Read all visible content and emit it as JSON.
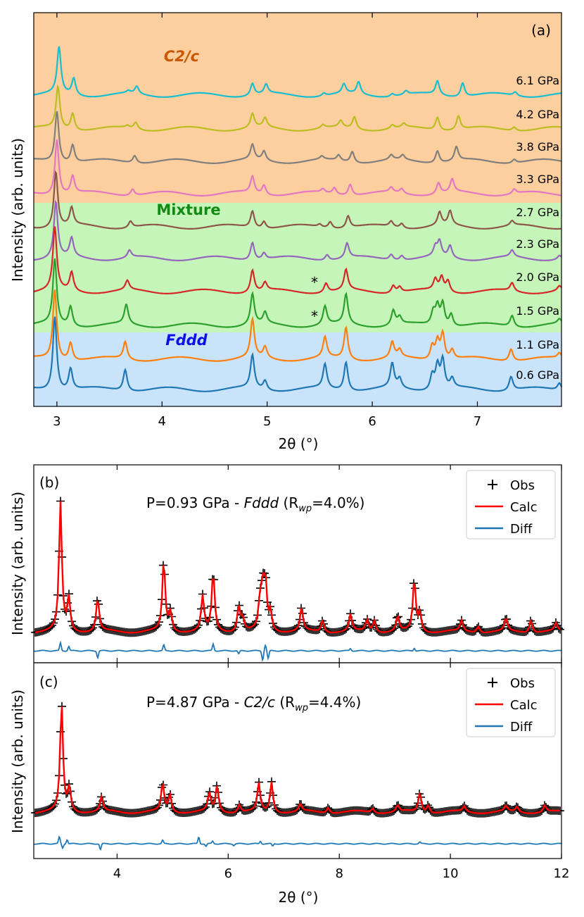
{
  "chart_data": [
    {
      "id": "a",
      "type": "line",
      "panel_label": "(a)",
      "xlabel": "2θ (°)",
      "ylabel": "Intensity (arb. units)",
      "xlim": [
        2.78,
        7.8
      ],
      "xticks": [
        3,
        4,
        5,
        6,
        7
      ],
      "regions": [
        {
          "name": "C2/c",
          "color": "#fdcf9f",
          "label_color": "#cc5500"
        },
        {
          "name": "Mixture",
          "color": "#c5f5b8",
          "label_color": "#138a13"
        },
        {
          "name": "Fddd",
          "color": "#c9e3fb",
          "label_color": "#0a10e6"
        }
      ],
      "series": [
        {
          "name": "6.1 GPa",
          "color": "#17becf",
          "region": "C2/c",
          "peaks": [
            [
              3.02,
              1.0
            ],
            [
              3.16,
              0.36
            ],
            [
              3.76,
              0.16
            ],
            [
              3.68,
              0.05
            ],
            [
              4.86,
              0.26
            ],
            [
              4.99,
              0.2
            ],
            [
              5.54,
              0.06
            ],
            [
              5.73,
              0.2
            ],
            [
              5.87,
              0.26
            ],
            [
              6.19,
              0.06
            ],
            [
              6.32,
              0.08
            ],
            [
              6.62,
              0.3
            ],
            [
              6.86,
              0.3
            ],
            [
              7.36,
              0.08
            ]
          ]
        },
        {
          "name": "4.2 GPa",
          "color": "#bcbd22",
          "region": "C2/c",
          "peaks": [
            [
              3.01,
              0.9
            ],
            [
              3.15,
              0.36
            ],
            [
              3.75,
              0.15
            ],
            [
              3.67,
              0.05
            ],
            [
              4.86,
              0.3
            ],
            [
              4.98,
              0.2
            ],
            [
              5.53,
              0.07
            ],
            [
              5.7,
              0.14
            ],
            [
              5.83,
              0.26
            ],
            [
              6.19,
              0.08
            ],
            [
              6.3,
              0.08
            ],
            [
              6.62,
              0.28
            ],
            [
              6.82,
              0.3
            ],
            [
              7.35,
              0.08
            ]
          ]
        },
        {
          "name": "3.8 GPa",
          "color": "#7f7f7f",
          "region": "C2/c",
          "peaks": [
            [
              3.0,
              1.1
            ],
            [
              3.15,
              0.38
            ],
            [
              3.74,
              0.16
            ],
            [
              4.86,
              0.32
            ],
            [
              4.97,
              0.2
            ],
            [
              5.52,
              0.07
            ],
            [
              5.68,
              0.12
            ],
            [
              5.81,
              0.24
            ],
            [
              6.18,
              0.1
            ],
            [
              6.29,
              0.1
            ],
            [
              6.62,
              0.26
            ],
            [
              6.8,
              0.3
            ],
            [
              7.35,
              0.08
            ]
          ]
        },
        {
          "name": "3.3 GPa",
          "color": "#e377c2",
          "region": "C2/c",
          "peaks": [
            [
              3.0,
              1.2
            ],
            [
              3.15,
              0.38
            ],
            [
              3.72,
              0.14
            ],
            [
              4.86,
              0.36
            ],
            [
              4.97,
              0.2
            ],
            [
              5.53,
              0.08
            ],
            [
              5.64,
              0.14
            ],
            [
              5.79,
              0.24
            ],
            [
              6.18,
              0.1
            ],
            [
              6.28,
              0.1
            ],
            [
              6.63,
              0.24
            ],
            [
              6.76,
              0.28
            ],
            [
              7.35,
              0.1
            ]
          ]
        },
        {
          "name": "2.7 GPa",
          "color": "#8c564b",
          "region": "Mixture",
          "peaks": [
            [
              2.99,
              1.2
            ],
            [
              3.14,
              0.38
            ],
            [
              3.7,
              0.14
            ],
            [
              4.86,
              0.36
            ],
            [
              4.97,
              0.15
            ],
            [
              5.5,
              0.06
            ],
            [
              5.6,
              0.14
            ],
            [
              5.77,
              0.26
            ],
            [
              6.18,
              0.12
            ],
            [
              6.28,
              0.1
            ],
            [
              6.64,
              0.28
            ],
            [
              6.74,
              0.3
            ],
            [
              7.33,
              0.1
            ]
          ]
        },
        {
          "name": "2.3 GPa",
          "color": "#9467bd",
          "region": "Mixture",
          "peaks": [
            [
              2.99,
              1.2
            ],
            [
              3.14,
              0.4
            ],
            [
              3.69,
              0.16
            ],
            [
              4.86,
              0.38
            ],
            [
              4.97,
              0.14
            ],
            [
              5.57,
              0.12
            ],
            [
              5.76,
              0.32
            ],
            [
              6.18,
              0.12
            ],
            [
              6.28,
              0.1
            ],
            [
              6.6,
              0.2
            ],
            [
              6.64,
              0.32
            ],
            [
              6.74,
              0.26
            ],
            [
              7.33,
              0.14
            ],
            [
              7.78,
              0.08
            ]
          ]
        },
        {
          "name": "2.0 GPa",
          "color": "#d62728",
          "region": "Mixture",
          "marker": "*",
          "peaks": [
            [
              2.98,
              1.35
            ],
            [
              3.14,
              0.4
            ],
            [
              3.67,
              0.2
            ],
            [
              4.86,
              0.48
            ],
            [
              4.98,
              0.18
            ],
            [
              5.56,
              0.2
            ],
            [
              5.75,
              0.44
            ],
            [
              6.2,
              0.16
            ],
            [
              6.26,
              0.12
            ],
            [
              6.6,
              0.24
            ],
            [
              6.66,
              0.3
            ],
            [
              6.72,
              0.24
            ],
            [
              7.33,
              0.18
            ],
            [
              7.78,
              0.1
            ]
          ]
        },
        {
          "name": "1.5 GPa",
          "color": "#2ca02c",
          "region": "Mixture",
          "marker": "*",
          "peaks": [
            [
              2.98,
              1.4
            ],
            [
              3.13,
              0.42
            ],
            [
              3.66,
              0.42
            ],
            [
              4.86,
              0.66
            ],
            [
              4.98,
              0.24
            ],
            [
              5.55,
              0.4
            ],
            [
              5.75,
              0.64
            ],
            [
              6.2,
              0.32
            ],
            [
              6.26,
              0.16
            ],
            [
              6.58,
              0.28
            ],
            [
              6.62,
              0.4
            ],
            [
              6.67,
              0.48
            ],
            [
              6.75,
              0.26
            ],
            [
              7.33,
              0.24
            ],
            [
              7.78,
              0.1
            ]
          ]
        },
        {
          "name": "1.1 GPa",
          "color": "#ff7f0e",
          "region": "Fddd",
          "peaks": [
            [
              2.98,
              1.5
            ],
            [
              3.13,
              0.38
            ],
            [
              3.65,
              0.38
            ],
            [
              4.86,
              0.82
            ],
            [
              4.98,
              0.24
            ],
            [
              5.55,
              0.44
            ],
            [
              5.75,
              0.68
            ],
            [
              6.19,
              0.34
            ],
            [
              6.26,
              0.16
            ],
            [
              6.57,
              0.3
            ],
            [
              6.62,
              0.4
            ],
            [
              6.67,
              0.56
            ],
            [
              6.76,
              0.2
            ],
            [
              7.32,
              0.26
            ],
            [
              7.78,
              0.12
            ]
          ]
        },
        {
          "name": "0.6 GPa",
          "color": "#1f77b4",
          "region": "Fddd",
          "peaks": [
            [
              2.98,
              1.6
            ],
            [
              3.13,
              0.46
            ],
            [
              3.65,
              0.46
            ],
            [
              4.86,
              0.72
            ],
            [
              4.98,
              0.2
            ],
            [
              5.55,
              0.52
            ],
            [
              5.75,
              0.62
            ],
            [
              6.19,
              0.52
            ],
            [
              6.26,
              0.2
            ],
            [
              6.57,
              0.32
            ],
            [
              6.62,
              0.5
            ],
            [
              6.67,
              0.62
            ],
            [
              6.76,
              0.2
            ],
            [
              7.32,
              0.3
            ],
            [
              7.78,
              0.16
            ]
          ]
        }
      ]
    },
    {
      "id": "b",
      "type": "line",
      "panel_label": "(b)",
      "annotation": {
        "pre": "P=0.93 GPa - ",
        "phase": "Fddd",
        "mid": " (R",
        "sub": "wp",
        "post": "=4.0%)"
      },
      "ylabel": "Intensity (arb. units)",
      "xlim": [
        2.5,
        12
      ],
      "xticks": [
        4,
        6,
        8,
        10,
        12
      ],
      "legend": {
        "position": "top-right",
        "entries": [
          "Obs",
          "Calc",
          "Diff"
        ],
        "colors": [
          "#000000",
          "#ff0000",
          "#1f77b4"
        ]
      },
      "peaks": [
        [
          2.98,
          1.0
        ],
        [
          3.13,
          0.26
        ],
        [
          3.65,
          0.26
        ],
        [
          4.84,
          0.55
        ],
        [
          4.96,
          0.15
        ],
        [
          5.54,
          0.27
        ],
        [
          5.73,
          0.46
        ],
        [
          6.19,
          0.2
        ],
        [
          6.26,
          0.1
        ],
        [
          6.57,
          0.2
        ],
        [
          6.62,
          0.3
        ],
        [
          6.67,
          0.36
        ],
        [
          6.76,
          0.14
        ],
        [
          7.32,
          0.18
        ],
        [
          7.7,
          0.09
        ],
        [
          8.2,
          0.13
        ],
        [
          8.5,
          0.09
        ],
        [
          8.63,
          0.09
        ],
        [
          9.05,
          0.12
        ],
        [
          9.35,
          0.4
        ],
        [
          9.45,
          0.14
        ],
        [
          10.2,
          0.08
        ],
        [
          10.5,
          0.05
        ],
        [
          11.0,
          0.1
        ],
        [
          11.45,
          0.1
        ],
        [
          11.9,
          0.06
        ]
      ],
      "diff_spikes": [
        [
          2.98,
          0.7
        ],
        [
          3.13,
          0.4
        ],
        [
          3.65,
          -0.6
        ],
        [
          4.84,
          0.5
        ],
        [
          5.73,
          0.6
        ],
        [
          6.19,
          -0.3
        ],
        [
          6.62,
          -0.8
        ],
        [
          6.67,
          0.5
        ],
        [
          6.72,
          -0.7
        ],
        [
          8.2,
          0.2
        ],
        [
          9.35,
          0.25
        ]
      ]
    },
    {
      "id": "c",
      "type": "line",
      "panel_label": "(c)",
      "annotation": {
        "pre": "P=4.87 GPa - ",
        "phase": "C2/c",
        "mid": " (R",
        "sub": "wp",
        "post": "=4.4%)"
      },
      "xlabel": "2θ (°)",
      "ylabel": "Intensity (arb. units)",
      "xlim": [
        2.5,
        12
      ],
      "xticks": [
        4,
        6,
        8,
        10,
        12
      ],
      "legend": {
        "position": "top-right",
        "entries": [
          "Obs",
          "Calc",
          "Diff"
        ],
        "colors": [
          "#000000",
          "#ff0000",
          "#1f77b4"
        ]
      },
      "peaks": [
        [
          3.0,
          1.0
        ],
        [
          3.14,
          0.22
        ],
        [
          3.72,
          0.13
        ],
        [
          4.82,
          0.26
        ],
        [
          4.95,
          0.16
        ],
        [
          5.66,
          0.17
        ],
        [
          5.8,
          0.24
        ],
        [
          6.2,
          0.07
        ],
        [
          6.55,
          0.26
        ],
        [
          6.78,
          0.28
        ],
        [
          7.3,
          0.07
        ],
        [
          7.8,
          0.05
        ],
        [
          8.6,
          0.04
        ],
        [
          9.05,
          0.06
        ],
        [
          9.45,
          0.18
        ],
        [
          9.6,
          0.07
        ],
        [
          10.25,
          0.05
        ],
        [
          11.0,
          0.05
        ],
        [
          11.2,
          0.05
        ],
        [
          11.7,
          0.06
        ]
      ],
      "diff_spikes": [
        [
          2.96,
          0.8
        ],
        [
          3.02,
          -0.5
        ],
        [
          3.1,
          0.5
        ],
        [
          3.7,
          -0.7
        ],
        [
          4.82,
          0.4
        ],
        [
          5.47,
          0.8
        ],
        [
          5.6,
          -0.3
        ],
        [
          5.72,
          0.3
        ],
        [
          6.1,
          -0.2
        ],
        [
          6.58,
          0.3
        ],
        [
          6.8,
          -0.3
        ],
        [
          9.45,
          0.2
        ]
      ]
    }
  ]
}
